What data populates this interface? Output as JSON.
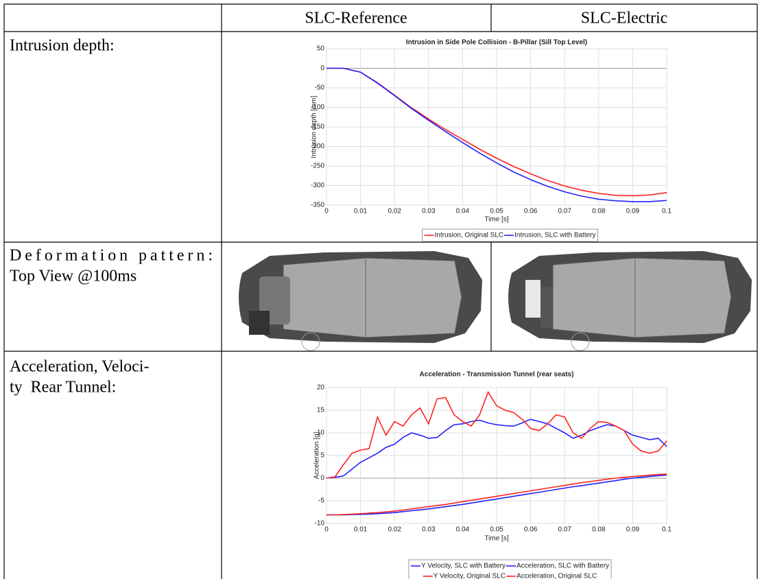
{
  "table": {
    "columns": [
      "SLC-Reference",
      "SLC-Electric"
    ],
    "rows": [
      {
        "label": [
          "Intrusion depth:"
        ]
      },
      {
        "label": [
          "Deformation pattern:",
          "Top View @100ms"
        ]
      },
      {
        "label": [
          "Acceleration, Veloci-",
          "ty  Rear Tunnel:"
        ]
      }
    ]
  },
  "chart_data": [
    {
      "type": "line",
      "title": "Intrusion in Side Pole Collision - B-Pillar (Sill Top Level)",
      "x_label": "Time [s]",
      "y_label": "Intrusion depth [mm]",
      "x": [
        0,
        0.005,
        0.01,
        0.015,
        0.02,
        0.025,
        0.03,
        0.035,
        0.04,
        0.045,
        0.05,
        0.055,
        0.06,
        0.065,
        0.07,
        0.075,
        0.08,
        0.085,
        0.09,
        0.095,
        0.1
      ],
      "series": [
        {
          "name": "Intrusion, Original SLC",
          "color": "#ff2020",
          "values": [
            0,
            0,
            -10,
            -37,
            -69,
            -101,
            -130,
            -157,
            -182,
            -207,
            -230,
            -251,
            -270,
            -287,
            -301,
            -312,
            -320,
            -325,
            -326,
            -324,
            -318
          ]
        },
        {
          "name": "Intrusion, SLC with Battery",
          "color": "#2020ff",
          "values": [
            0,
            0,
            -10,
            -38,
            -70,
            -103,
            -133,
            -162,
            -190,
            -217,
            -242,
            -265,
            -285,
            -302,
            -316,
            -327,
            -335,
            -339,
            -341,
            -341,
            -338
          ]
        }
      ],
      "xlim": [
        0,
        0.1
      ],
      "xticks": [
        0,
        0.01,
        0.02,
        0.03,
        0.04,
        0.05,
        0.06,
        0.07,
        0.08,
        0.09,
        0.1
      ],
      "ylim": [
        -350,
        50
      ],
      "yticks": [
        -350,
        -300,
        -250,
        -200,
        -150,
        -100,
        -50,
        0,
        50
      ],
      "grid": true
    },
    {
      "type": "line",
      "title": "Acceleration - Transmission Tunnel (rear seats)",
      "x_label": "Time [s]",
      "y_label": "Acceleration [g]",
      "x": [
        0,
        0.0025,
        0.005,
        0.0075,
        0.01,
        0.0125,
        0.015,
        0.0175,
        0.02,
        0.0225,
        0.025,
        0.0275,
        0.03,
        0.0325,
        0.035,
        0.0375,
        0.04,
        0.0425,
        0.045,
        0.0475,
        0.05,
        0.0525,
        0.055,
        0.0575,
        0.06,
        0.0625,
        0.065,
        0.0675,
        0.07,
        0.0725,
        0.075,
        0.0775,
        0.08,
        0.0825,
        0.085,
        0.0875,
        0.09,
        0.0925,
        0.095,
        0.0975,
        0.1
      ],
      "series": [
        {
          "name": "Y Velocity, SLC with Battery",
          "color": "#2020ff",
          "values": [
            -8.1,
            -8.1,
            -8.1,
            -8.05,
            -8.0,
            -7.95,
            -7.85,
            -7.75,
            -7.6,
            -7.4,
            -7.2,
            -7.0,
            -6.8,
            -6.55,
            -6.3,
            -6.05,
            -5.8,
            -5.5,
            -5.2,
            -4.9,
            -4.6,
            -4.3,
            -4.0,
            -3.7,
            -3.4,
            -3.1,
            -2.8,
            -2.5,
            -2.2,
            -1.9,
            -1.65,
            -1.35,
            -1.1,
            -0.8,
            -0.55,
            -0.25,
            0,
            0.2,
            0.4,
            0.55,
            0.7
          ]
        },
        {
          "name": "Acceleration, SLC with Battery",
          "color": "#2020ff",
          "values": [
            0,
            0.2,
            0.5,
            2,
            3.5,
            4.5,
            5.5,
            6.8,
            7.5,
            9,
            10,
            9.5,
            8.8,
            9,
            10.5,
            11.8,
            12,
            12.5,
            12.8,
            12.2,
            11.8,
            11.6,
            11.5,
            12.2,
            13,
            12.5,
            12,
            11,
            10,
            8.8,
            9.5,
            10.5,
            11.2,
            11.8,
            11.5,
            10.5,
            9.5,
            9,
            8.5,
            8.8,
            7
          ]
        },
        {
          "name": "Y Velocity, Original SLC",
          "color": "#ff2020",
          "values": [
            -8.1,
            -8.1,
            -8.05,
            -7.95,
            -7.85,
            -7.75,
            -7.6,
            -7.45,
            -7.25,
            -7.05,
            -6.8,
            -6.55,
            -6.3,
            -6.05,
            -5.8,
            -5.5,
            -5.2,
            -4.9,
            -4.6,
            -4.3,
            -4.0,
            -3.7,
            -3.4,
            -3.1,
            -2.8,
            -2.5,
            -2.2,
            -1.9,
            -1.6,
            -1.3,
            -1.0,
            -0.75,
            -0.5,
            -0.25,
            0,
            0.2,
            0.35,
            0.5,
            0.65,
            0.8,
            0.9
          ]
        },
        {
          "name": "Acceleration, Original SLC",
          "color": "#ff2020",
          "values": [
            0,
            0.3,
            3,
            5.5,
            6.2,
            6.5,
            13.5,
            9.5,
            12.5,
            11.5,
            14,
            15.5,
            12,
            17.5,
            17.8,
            14,
            12.5,
            11.5,
            14,
            19,
            16,
            15,
            14.5,
            13,
            11,
            10.5,
            12,
            14,
            13.5,
            10,
            8.8,
            11,
            12.5,
            12.3,
            11.5,
            10.5,
            7.5,
            6,
            5.5,
            6,
            8.2
          ]
        }
      ],
      "xlim": [
        0,
        0.1
      ],
      "xticks": [
        0,
        0.01,
        0.02,
        0.03,
        0.04,
        0.05,
        0.06,
        0.07,
        0.08,
        0.09,
        0.1
      ],
      "ylim": [
        -10,
        20
      ],
      "yticks": [
        -10,
        -5,
        0,
        5,
        10,
        15,
        20
      ],
      "grid": true
    }
  ]
}
